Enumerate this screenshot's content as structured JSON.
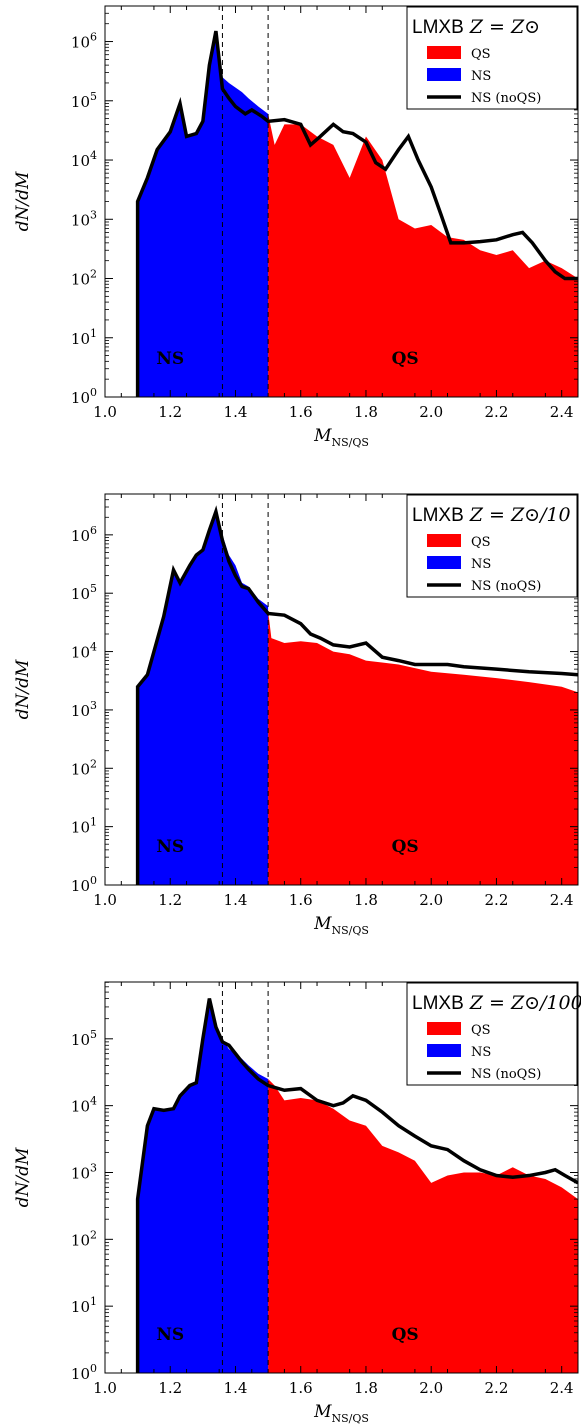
{
  "colors": {
    "qs": "#ff0000",
    "ns": "#0000ff",
    "noqs_line": "#000000",
    "frame": "#000000",
    "background": "#ffffff"
  },
  "chart_data": [
    {
      "type": "area",
      "legend_title": "LMXB",
      "legend_math": "Z = Z⊙",
      "legend_placement": "top-right",
      "xlabel": "M",
      "xlabel_sub": "NS/QS",
      "ylabel": "dN/dM",
      "xlim": [
        1.0,
        2.45
      ],
      "ylim_log10": [
        0,
        6.6
      ],
      "y_scale": "log",
      "xticks": [
        "1.0",
        "1.2",
        "1.4",
        "1.6",
        "1.8",
        "2.0",
        "2.2",
        "2.4"
      ],
      "yticks": [
        {
          "base": "10",
          "exp": "0"
        },
        {
          "base": "10",
          "exp": "1"
        },
        {
          "base": "10",
          "exp": "2"
        },
        {
          "base": "10",
          "exp": "3"
        },
        {
          "base": "10",
          "exp": "4"
        },
        {
          "base": "10",
          "exp": "5"
        },
        {
          "base": "10",
          "exp": "6"
        }
      ],
      "vlines": [
        1.36,
        1.5
      ],
      "region_labels": [
        "NS",
        "QS"
      ],
      "series": [
        {
          "name": "QS",
          "x": [
            1.5,
            1.52,
            1.55,
            1.6,
            1.65,
            1.7,
            1.75,
            1.8,
            1.85,
            1.9,
            1.95,
            2.0,
            2.05,
            2.1,
            2.15,
            2.2,
            2.25,
            2.3,
            2.35,
            2.4,
            2.45
          ],
          "y": [
            60000,
            18000,
            40000,
            40000,
            25000,
            18000,
            5000,
            25000,
            10000,
            1000,
            700,
            800,
            500,
            450,
            300,
            250,
            300,
            150,
            200,
            150,
            100
          ]
        },
        {
          "name": "NS",
          "x": [
            1.1,
            1.13,
            1.16,
            1.2,
            1.23,
            1.25,
            1.28,
            1.3,
            1.32,
            1.34,
            1.36,
            1.38,
            1.42,
            1.44,
            1.47,
            1.5
          ],
          "y": [
            2000,
            5000,
            15000,
            30000,
            90000,
            25000,
            28000,
            45000,
            400000,
            1500000,
            250000,
            200000,
            140000,
            110000,
            80000,
            60000
          ]
        },
        {
          "name": "NS (noQS)",
          "x": [
            1.1,
            1.13,
            1.16,
            1.2,
            1.23,
            1.25,
            1.28,
            1.3,
            1.32,
            1.34,
            1.36,
            1.38,
            1.4,
            1.43,
            1.45,
            1.48,
            1.5,
            1.55,
            1.6,
            1.63,
            1.66,
            1.7,
            1.73,
            1.76,
            1.8,
            1.83,
            1.86,
            1.9,
            1.93,
            1.96,
            2.0,
            2.03,
            2.06,
            2.1,
            2.15,
            2.2,
            2.25,
            2.28,
            2.31,
            2.35,
            2.38,
            2.41,
            2.45
          ],
          "y": [
            2000,
            5000,
            15000,
            30000,
            90000,
            25000,
            28000,
            45000,
            400000,
            1500000,
            160000,
            110000,
            80000,
            60000,
            70000,
            55000,
            45000,
            48000,
            40000,
            18000,
            25000,
            40000,
            30000,
            28000,
            20000,
            9000,
            7000,
            15000,
            25000,
            10000,
            3500,
            1200,
            400,
            400,
            420,
            450,
            550,
            600,
            400,
            200,
            130,
            100,
            100
          ]
        }
      ]
    },
    {
      "type": "area",
      "legend_title": "LMXB",
      "legend_math": "Z = Z⊙/10",
      "legend_placement": "top-right",
      "xlabel": "M",
      "xlabel_sub": "NS/QS",
      "ylabel": "dN/dM",
      "xlim": [
        1.0,
        2.45
      ],
      "ylim_log10": [
        0,
        6.7
      ],
      "y_scale": "log",
      "xticks": [
        "1.0",
        "1.2",
        "1.4",
        "1.6",
        "1.8",
        "2.0",
        "2.2",
        "2.4"
      ],
      "yticks": [
        {
          "base": "10",
          "exp": "0"
        },
        {
          "base": "10",
          "exp": "1"
        },
        {
          "base": "10",
          "exp": "2"
        },
        {
          "base": "10",
          "exp": "3"
        },
        {
          "base": "10",
          "exp": "4"
        },
        {
          "base": "10",
          "exp": "5"
        },
        {
          "base": "10",
          "exp": "6"
        }
      ],
      "vlines": [
        1.36,
        1.5
      ],
      "region_labels": [
        "NS",
        "QS"
      ],
      "series": [
        {
          "name": "QS",
          "x": [
            1.5,
            1.51,
            1.55,
            1.6,
            1.65,
            1.7,
            1.75,
            1.8,
            1.9,
            2.0,
            2.1,
            2.2,
            2.3,
            2.4,
            2.45
          ],
          "y": [
            50000,
            17000,
            14000,
            15000,
            14000,
            10000,
            9000,
            7000,
            6000,
            4500,
            4000,
            3500,
            3000,
            2500,
            2000
          ]
        },
        {
          "name": "NS",
          "x": [
            1.1,
            1.13,
            1.15,
            1.18,
            1.21,
            1.23,
            1.26,
            1.28,
            1.3,
            1.32,
            1.34,
            1.36,
            1.38,
            1.4,
            1.42,
            1.44,
            1.47,
            1.5
          ],
          "y": [
            2500,
            4000,
            10000,
            40000,
            250000,
            150000,
            300000,
            450000,
            550000,
            1200000,
            2500000,
            1000000,
            450000,
            300000,
            150000,
            130000,
            80000,
            60000
          ]
        },
        {
          "name": "NS (noQS)",
          "x": [
            1.1,
            1.13,
            1.15,
            1.18,
            1.21,
            1.23,
            1.26,
            1.28,
            1.3,
            1.32,
            1.34,
            1.36,
            1.38,
            1.4,
            1.42,
            1.44,
            1.47,
            1.5,
            1.55,
            1.6,
            1.63,
            1.66,
            1.7,
            1.75,
            1.8,
            1.85,
            1.9,
            1.95,
            2.0,
            2.05,
            2.1,
            2.2,
            2.3,
            2.4,
            2.45
          ],
          "y": [
            2500,
            4000,
            10000,
            40000,
            250000,
            150000,
            300000,
            450000,
            550000,
            1200000,
            2500000,
            800000,
            350000,
            200000,
            130000,
            120000,
            70000,
            45000,
            42000,
            30000,
            20000,
            17000,
            13000,
            12000,
            14000,
            8000,
            7000,
            6000,
            6000,
            6000,
            5500,
            5000,
            4500,
            4200,
            4000
          ]
        }
      ]
    },
    {
      "type": "area",
      "legend_title": "LMXB",
      "legend_math": "Z = Z⊙/100",
      "legend_placement": "top-right",
      "xlabel": "M",
      "xlabel_sub": "NS/QS",
      "ylabel": "dN/dM",
      "xlim": [
        1.0,
        2.45
      ],
      "ylim_log10": [
        0,
        5.85
      ],
      "y_scale": "log",
      "xticks": [
        "1.0",
        "1.2",
        "1.4",
        "1.6",
        "1.8",
        "2.0",
        "2.2",
        "2.4"
      ],
      "yticks": [
        {
          "base": "10",
          "exp": "0"
        },
        {
          "base": "10",
          "exp": "1"
        },
        {
          "base": "10",
          "exp": "2"
        },
        {
          "base": "10",
          "exp": "3"
        },
        {
          "base": "10",
          "exp": "4"
        },
        {
          "base": "10",
          "exp": "5"
        }
      ],
      "vlines": [
        1.36,
        1.5
      ],
      "region_labels": [
        "NS",
        "QS"
      ],
      "series": [
        {
          "name": "QS",
          "x": [
            1.5,
            1.52,
            1.55,
            1.6,
            1.65,
            1.7,
            1.75,
            1.8,
            1.85,
            1.9,
            1.95,
            2.0,
            2.05,
            2.1,
            2.15,
            2.2,
            2.25,
            2.3,
            2.35,
            2.4,
            2.45
          ],
          "y": [
            25000,
            20000,
            12000,
            13000,
            12000,
            9000,
            6000,
            5000,
            2500,
            2000,
            1500,
            700,
            900,
            1000,
            1000,
            900,
            1200,
            900,
            800,
            600,
            400
          ]
        },
        {
          "name": "NS",
          "x": [
            1.1,
            1.13,
            1.15,
            1.18,
            1.21,
            1.23,
            1.26,
            1.28,
            1.3,
            1.32,
            1.34,
            1.36,
            1.38,
            1.4,
            1.42,
            1.44,
            1.47,
            1.5
          ],
          "y": [
            400,
            5000,
            9000,
            8500,
            9000,
            14000,
            20000,
            22000,
            100000,
            400000,
            150000,
            100000,
            70000,
            60000,
            50000,
            40000,
            30000,
            25000
          ]
        },
        {
          "name": "NS (noQS)",
          "x": [
            1.1,
            1.13,
            1.15,
            1.18,
            1.21,
            1.23,
            1.26,
            1.28,
            1.3,
            1.32,
            1.34,
            1.36,
            1.38,
            1.4,
            1.42,
            1.44,
            1.47,
            1.5,
            1.55,
            1.6,
            1.65,
            1.7,
            1.73,
            1.76,
            1.8,
            1.85,
            1.9,
            1.95,
            2.0,
            2.05,
            2.1,
            2.15,
            2.2,
            2.25,
            2.3,
            2.35,
            2.38,
            2.41,
            2.45
          ],
          "y": [
            400,
            5000,
            9000,
            8500,
            9000,
            14000,
            20000,
            22000,
            100000,
            400000,
            150000,
            90000,
            80000,
            60000,
            45000,
            35000,
            25000,
            20000,
            17000,
            18000,
            12000,
            10000,
            11000,
            14000,
            12000,
            8000,
            5000,
            3500,
            2500,
            2200,
            1500,
            1100,
            900,
            850,
            900,
            1000,
            1100,
            900,
            700
          ]
        }
      ]
    }
  ]
}
